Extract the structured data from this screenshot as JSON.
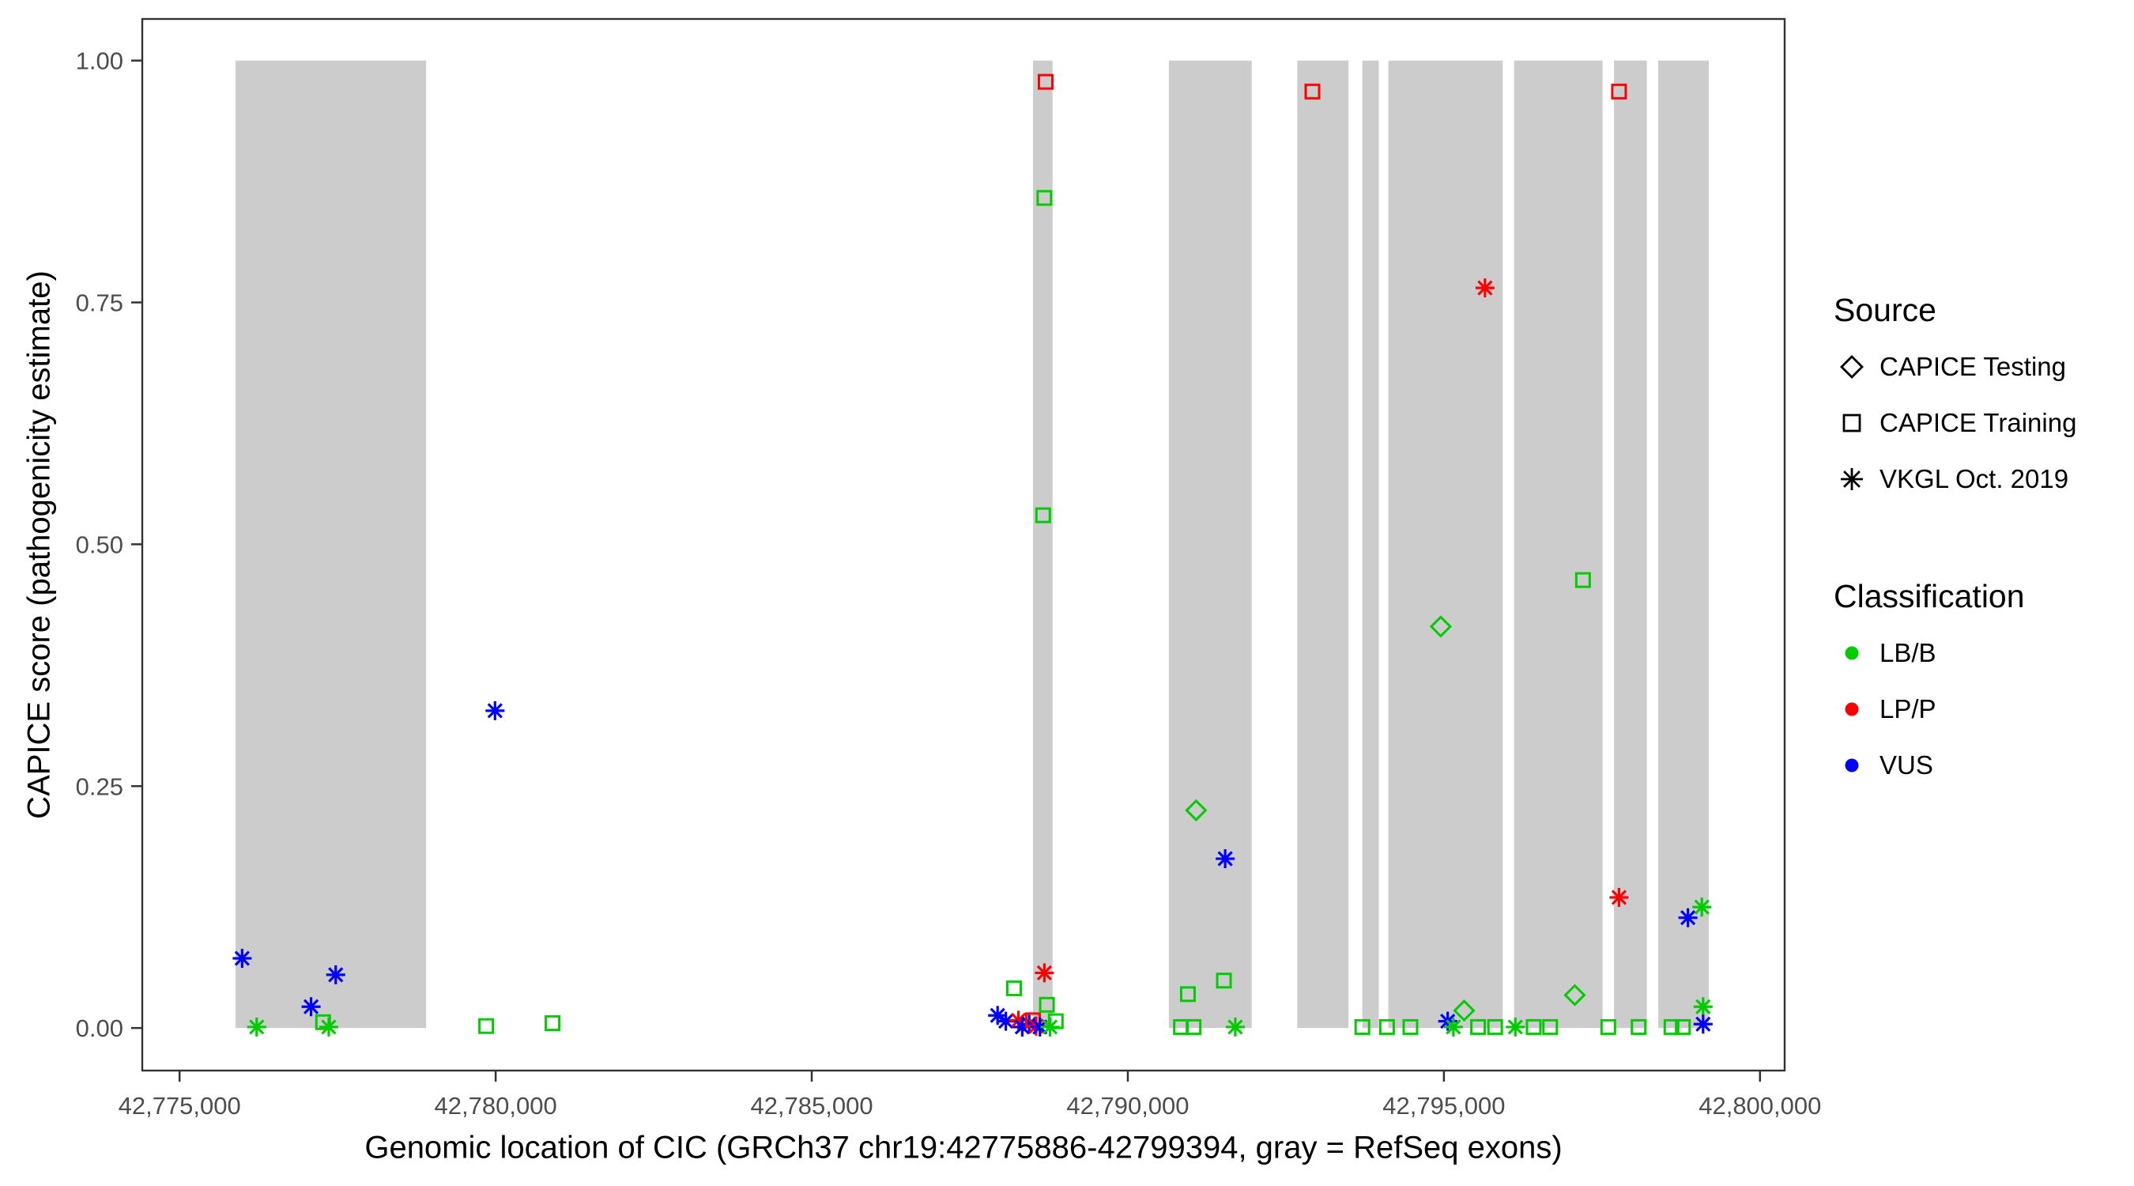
{
  "chart_data": {
    "type": "scatter",
    "title": "",
    "xlabel": "Genomic location of CIC (GRCh37 chr19:42775886-42799394, gray = RefSeq exons)",
    "ylabel": "CAPICE score (pathogenicity estimate)",
    "xlim": [
      42774410,
      42800390
    ],
    "ylim": [
      -0.044,
      1.043
    ],
    "grid": false,
    "legend_position": "right",
    "x_ticks": [
      {
        "value": 42775000,
        "label": "42,775,000"
      },
      {
        "value": 42780000,
        "label": "42,780,000"
      },
      {
        "value": 42785000,
        "label": "42,785,000"
      },
      {
        "value": 42790000,
        "label": "42,790,000"
      },
      {
        "value": 42795000,
        "label": "42,795,000"
      },
      {
        "value": 42800000,
        "label": "42,800,000"
      }
    ],
    "y_ticks": [
      {
        "value": 0,
        "label": "0.00"
      },
      {
        "value": 0.25,
        "label": "0.25"
      },
      {
        "value": 0.5,
        "label": "0.50"
      },
      {
        "value": 0.75,
        "label": "0.75"
      },
      {
        "value": 1,
        "label": "1.00"
      }
    ],
    "exon_color": "#CCCCCC",
    "exons": [
      [
        42775886,
        42778900
      ],
      [
        42788500,
        42788810
      ],
      [
        42790650,
        42791960
      ],
      [
        42792680,
        42793490
      ],
      [
        42793710,
        42793970
      ],
      [
        42794120,
        42795930
      ],
      [
        42796110,
        42797510
      ],
      [
        42797690,
        42798210
      ],
      [
        42798390,
        42799190
      ]
    ],
    "classification_colors": {
      "LB/B": "#00CC00",
      "LP/P": "#FF0000",
      "VUS": "#0000FF"
    },
    "source_shapes": {
      "CAPICE Testing": "diamond",
      "CAPICE Training": "square",
      "VKGL Oct. 2019": "asterisk"
    },
    "legend": {
      "source_title": "Source",
      "source_items": [
        {
          "shape": "diamond",
          "label": "CAPICE Testing"
        },
        {
          "shape": "square",
          "label": "CAPICE Training"
        },
        {
          "shape": "asterisk",
          "label": "VKGL Oct. 2019"
        }
      ],
      "classification_title": "Classification",
      "classification_items": [
        {
          "color": "#00CC00",
          "label": "LB/B"
        },
        {
          "color": "#FF0000",
          "label": "LP/P"
        },
        {
          "color": "#0000FF",
          "label": "VUS"
        }
      ]
    },
    "points": [
      {
        "x": 42775990,
        "y": 0.072,
        "source": "VKGL Oct. 2019",
        "class": "VUS"
      },
      {
        "x": 42776220,
        "y": 0.001,
        "source": "VKGL Oct. 2019",
        "class": "LB/B"
      },
      {
        "x": 42777080,
        "y": 0.022,
        "source": "VKGL Oct. 2019",
        "class": "VUS"
      },
      {
        "x": 42777270,
        "y": 0.006,
        "source": "CAPICE Training",
        "class": "LB/B"
      },
      {
        "x": 42777360,
        "y": 0.001,
        "source": "VKGL Oct. 2019",
        "class": "LB/B"
      },
      {
        "x": 42777470,
        "y": 0.055,
        "source": "VKGL Oct. 2019",
        "class": "VUS"
      },
      {
        "x": 42779850,
        "y": 0.002,
        "source": "CAPICE Training",
        "class": "LB/B"
      },
      {
        "x": 42779990,
        "y": 0.328,
        "source": "VKGL Oct. 2019",
        "class": "VUS"
      },
      {
        "x": 42780900,
        "y": 0.005,
        "source": "CAPICE Training",
        "class": "LB/B"
      },
      {
        "x": 42787940,
        "y": 0.013,
        "source": "VKGL Oct. 2019",
        "class": "VUS"
      },
      {
        "x": 42788070,
        "y": 0.007,
        "source": "VKGL Oct. 2019",
        "class": "VUS"
      },
      {
        "x": 42788200,
        "y": 0.041,
        "source": "CAPICE Training",
        "class": "LB/B"
      },
      {
        "x": 42788270,
        "y": 0.008,
        "source": "VKGL Oct. 2019",
        "class": "LP/P"
      },
      {
        "x": 42788330,
        "y": 0.001,
        "source": "VKGL Oct. 2019",
        "class": "VUS"
      },
      {
        "x": 42788440,
        "y": 0.004,
        "source": "VKGL Oct. 2019",
        "class": "VUS"
      },
      {
        "x": 42788500,
        "y": 0.008,
        "source": "CAPICE Training",
        "class": "LP/P"
      },
      {
        "x": 42788550,
        "y": 0.002,
        "source": "VKGL Oct. 2019",
        "class": "LP/P"
      },
      {
        "x": 42788610,
        "y": 0.001,
        "source": "VKGL Oct. 2019",
        "class": "VUS"
      },
      {
        "x": 42788660,
        "y": 0.53,
        "source": "CAPICE Training",
        "class": "LB/B"
      },
      {
        "x": 42788680,
        "y": 0.858,
        "source": "CAPICE Training",
        "class": "LB/B"
      },
      {
        "x": 42788680,
        "y": 0.057,
        "source": "VKGL Oct. 2019",
        "class": "LP/P"
      },
      {
        "x": 42788700,
        "y": 0.978,
        "source": "CAPICE Training",
        "class": "LP/P"
      },
      {
        "x": 42788720,
        "y": 0.024,
        "source": "CAPICE Training",
        "class": "LB/B"
      },
      {
        "x": 42788770,
        "y": 0.001,
        "source": "VKGL Oct. 2019",
        "class": "LB/B"
      },
      {
        "x": 42788860,
        "y": 0.007,
        "source": "CAPICE Training",
        "class": "LB/B"
      },
      {
        "x": 42790840,
        "y": 0.001,
        "source": "CAPICE Training",
        "class": "LB/B"
      },
      {
        "x": 42790950,
        "y": 0.035,
        "source": "CAPICE Training",
        "class": "LB/B"
      },
      {
        "x": 42791040,
        "y": 0.001,
        "source": "CAPICE Training",
        "class": "LB/B"
      },
      {
        "x": 42791080,
        "y": 0.225,
        "source": "CAPICE Testing",
        "class": "LB/B"
      },
      {
        "x": 42791520,
        "y": 0.049,
        "source": "CAPICE Training",
        "class": "LB/B"
      },
      {
        "x": 42791540,
        "y": 0.175,
        "source": "VKGL Oct. 2019",
        "class": "VUS"
      },
      {
        "x": 42791700,
        "y": 0.001,
        "source": "VKGL Oct. 2019",
        "class": "LB/B"
      },
      {
        "x": 42792920,
        "y": 0.968,
        "source": "CAPICE Training",
        "class": "LP/P"
      },
      {
        "x": 42793710,
        "y": 0.001,
        "source": "CAPICE Training",
        "class": "LB/B"
      },
      {
        "x": 42794100,
        "y": 0.001,
        "source": "CAPICE Training",
        "class": "LB/B"
      },
      {
        "x": 42794470,
        "y": 0.001,
        "source": "CAPICE Training",
        "class": "LB/B"
      },
      {
        "x": 42794950,
        "y": 0.415,
        "source": "CAPICE Testing",
        "class": "LB/B"
      },
      {
        "x": 42795060,
        "y": 0.007,
        "source": "VKGL Oct. 2019",
        "class": "VUS"
      },
      {
        "x": 42795150,
        "y": 0.001,
        "source": "VKGL Oct. 2019",
        "class": "LB/B"
      },
      {
        "x": 42795320,
        "y": 0.018,
        "source": "CAPICE Testing",
        "class": "LB/B"
      },
      {
        "x": 42795540,
        "y": 0.001,
        "source": "CAPICE Training",
        "class": "LB/B"
      },
      {
        "x": 42795650,
        "y": 0.765,
        "source": "VKGL Oct. 2019",
        "class": "LP/P"
      },
      {
        "x": 42795810,
        "y": 0.001,
        "source": "CAPICE Training",
        "class": "LB/B"
      },
      {
        "x": 42796130,
        "y": 0.001,
        "source": "VKGL Oct. 2019",
        "class": "LB/B"
      },
      {
        "x": 42796420,
        "y": 0.001,
        "source": "CAPICE Training",
        "class": "LB/B"
      },
      {
        "x": 42796680,
        "y": 0.001,
        "source": "CAPICE Training",
        "class": "LB/B"
      },
      {
        "x": 42797070,
        "y": 0.034,
        "source": "CAPICE Testing",
        "class": "LB/B"
      },
      {
        "x": 42797200,
        "y": 0.463,
        "source": "CAPICE Training",
        "class": "LB/B"
      },
      {
        "x": 42797600,
        "y": 0.001,
        "source": "CAPICE Training",
        "class": "LB/B"
      },
      {
        "x": 42797770,
        "y": 0.968,
        "source": "CAPICE Training",
        "class": "LP/P"
      },
      {
        "x": 42797770,
        "y": 0.135,
        "source": "VKGL Oct. 2019",
        "class": "LP/P"
      },
      {
        "x": 42798080,
        "y": 0.001,
        "source": "CAPICE Training",
        "class": "LB/B"
      },
      {
        "x": 42798600,
        "y": 0.001,
        "source": "CAPICE Training",
        "class": "LB/B"
      },
      {
        "x": 42798780,
        "y": 0.001,
        "source": "CAPICE Training",
        "class": "LB/B"
      },
      {
        "x": 42798860,
        "y": 0.114,
        "source": "VKGL Oct. 2019",
        "class": "VUS"
      },
      {
        "x": 42799080,
        "y": 0.125,
        "source": "VKGL Oct. 2019",
        "class": "LB/B"
      },
      {
        "x": 42799100,
        "y": 0.022,
        "source": "VKGL Oct. 2019",
        "class": "LB/B"
      },
      {
        "x": 42799100,
        "y": 0.004,
        "source": "VKGL Oct. 2019",
        "class": "VUS"
      }
    ]
  }
}
